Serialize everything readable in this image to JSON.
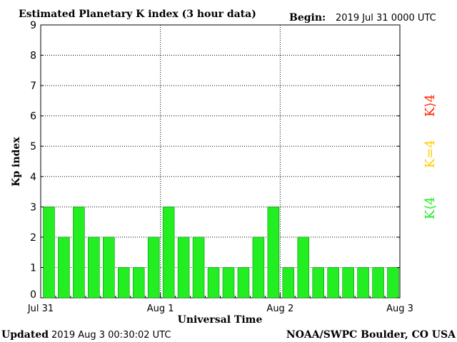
{
  "header": {
    "title": "Estimated Planetary K index (3 hour data)",
    "begin_label": "Begin:",
    "begin_value": "2019 Jul 31 0000 UTC"
  },
  "footer": {
    "updated_label": "Updated",
    "updated_value": "2019 Aug  3 00:30:02 UTC",
    "source": "NOAA/SWPC Boulder, CO USA"
  },
  "legend": {
    "low": "K⟨4",
    "mid": "K=4",
    "high": "K⟩4"
  },
  "colors": {
    "low": "#22ee22",
    "mid": "#ffcc00",
    "high": "#ff2a00",
    "bar_stroke": "#118811"
  },
  "chart_data": {
    "type": "bar",
    "xlabel": "Universal Time",
    "ylabel": "Kp index",
    "ylim": [
      0,
      9
    ],
    "yticks": [
      0,
      1,
      2,
      3,
      4,
      5,
      6,
      7,
      8,
      9
    ],
    "xticks": [
      "Jul 31",
      "Aug 1",
      "Aug 2",
      "Aug 3"
    ],
    "interval_hours": 3,
    "values": [
      3,
      2,
      3,
      2,
      2,
      1,
      1,
      2,
      3,
      2,
      2,
      1,
      1,
      1,
      2,
      3,
      1,
      2,
      1,
      1,
      1,
      1,
      1,
      1
    ],
    "grid": true
  }
}
